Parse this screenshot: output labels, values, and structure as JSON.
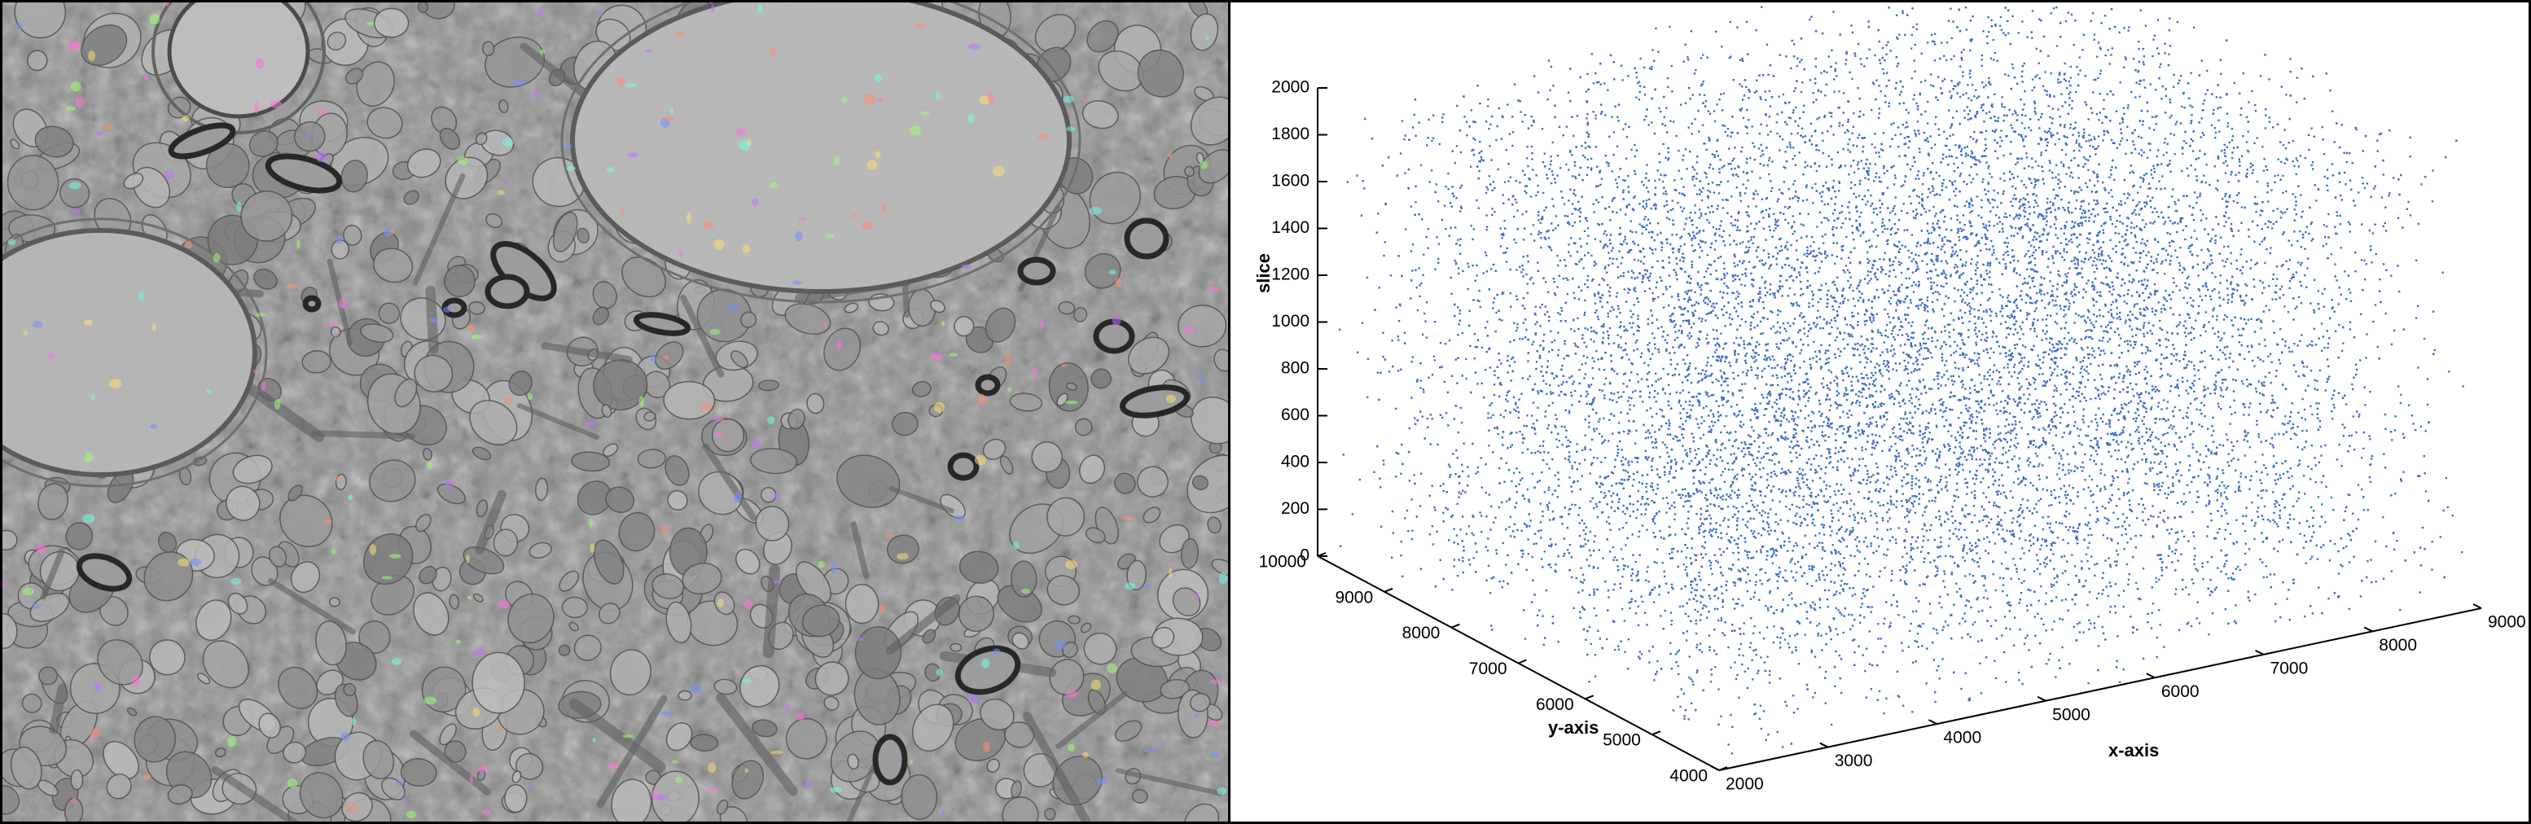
{
  "em_image": {
    "label_colors": [
      "#ff6fd8",
      "#6f8cff",
      "#9aff6f",
      "#ff8a6f",
      "#6fffe6",
      "#ffe06f",
      "#c06fff"
    ]
  },
  "chart_data": {
    "type": "scatter",
    "projection": "3d",
    "marker_color": "#3f6fc6",
    "xlabel": "x-axis",
    "ylabel": "y-axis",
    "zlabel": "slice",
    "xlim": [
      2000,
      9000
    ],
    "ylim": [
      4000,
      10000
    ],
    "zlim": [
      0,
      2000
    ],
    "x_ticks": [
      "2000",
      "3000",
      "4000",
      "5000",
      "6000",
      "7000",
      "8000",
      "9000"
    ],
    "y_ticks": [
      "4000",
      "5000",
      "6000",
      "7000",
      "8000",
      "9000",
      "10000"
    ],
    "z_ticks": [
      "0",
      "200",
      "400",
      "600",
      "800",
      "1000",
      "1200",
      "1400",
      "1600",
      "1800",
      "2000"
    ],
    "x_distribution": {
      "range": [
        2000,
        9000
      ]
    },
    "y_distribution": {
      "range": [
        4000,
        10000
      ]
    },
    "z_distribution": {
      "range": [
        0,
        2000
      ]
    },
    "grid": false
  }
}
